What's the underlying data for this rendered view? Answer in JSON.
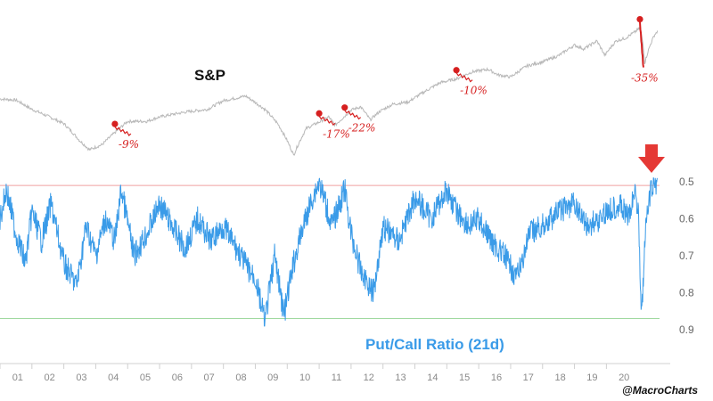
{
  "chart_data": [
    {
      "type": "line",
      "title": "S&P",
      "series": [
        {
          "x": [
            2000.0,
            2000.5,
            2001.0,
            2001.5,
            2002.0,
            2002.5,
            2002.8,
            2003.2,
            2003.6,
            2004.0,
            2004.6,
            2005.0,
            2005.8,
            2006.5,
            2007.0,
            2007.7,
            2008.3,
            2008.7,
            2009.0,
            2009.2,
            2009.6,
            2010.0,
            2010.3,
            2010.5,
            2010.8,
            2011.0,
            2011.3,
            2011.6,
            2011.9,
            2012.3,
            2012.8,
            2013.3,
            2013.8,
            2014.3,
            2014.8,
            2015.3,
            2015.6,
            2016.0,
            2016.5,
            2017.0,
            2017.5,
            2018.0,
            2018.3,
            2018.7,
            2018.95,
            2019.3,
            2019.6,
            2019.9,
            2020.05,
            2020.15,
            2020.2,
            2020.35,
            2020.5,
            2020.6
          ],
          "values": [
            1470,
            1450,
            1300,
            1200,
            1100,
            900,
            810,
            860,
            990,
            1130,
            1130,
            1190,
            1260,
            1300,
            1440,
            1520,
            1300,
            1100,
            900,
            760,
            1040,
            1120,
            1190,
            1080,
            1200,
            1290,
            1340,
            1150,
            1270,
            1380,
            1420,
            1600,
            1780,
            1860,
            2020,
            2080,
            1950,
            1900,
            2160,
            2270,
            2440,
            2760,
            2640,
            2900,
            2450,
            2900,
            3000,
            3230,
            3380,
            2800,
            2240,
            2700,
            3100,
            3250
          ]
        }
      ],
      "annotations": [
        {
          "x": 2003.6,
          "label": "-9%"
        },
        {
          "x": 2010.0,
          "label": "-17%"
        },
        {
          "x": 2010.8,
          "label": "-22%"
        },
        {
          "x": 2014.3,
          "label": "-10%"
        },
        {
          "x": 2020.05,
          "label": "-35%"
        }
      ]
    },
    {
      "type": "line",
      "title": "Put/Call Ratio (21d)",
      "ylim": [
        0.5,
        0.9
      ],
      "yaxis_inverted": true,
      "yticks": [
        "0.5",
        "0.6",
        "0.7",
        "0.8",
        "0.9"
      ],
      "xticks": [
        "01",
        "02",
        "03",
        "04",
        "05",
        "06",
        "07",
        "08",
        "09",
        "10",
        "11",
        "12",
        "13",
        "14",
        "15",
        "16",
        "17",
        "18",
        "19",
        "20"
      ],
      "reference_lines": [
        {
          "value": 0.51,
          "color": "#f0a0a0"
        },
        {
          "value": 0.87,
          "color": "#9ed89e"
        }
      ],
      "series": [
        {
          "x": [
            2000.0,
            2000.2,
            2000.5,
            2000.8,
            2001.0,
            2001.3,
            2001.6,
            2002.0,
            2002.4,
            2002.7,
            2003.0,
            2003.3,
            2003.6,
            2003.8,
            2004.2,
            2004.6,
            2005.0,
            2005.4,
            2005.8,
            2006.2,
            2006.6,
            2007.0,
            2007.4,
            2007.8,
            2008.0,
            2008.3,
            2008.6,
            2008.9,
            2009.2,
            2009.5,
            2009.8,
            2010.0,
            2010.4,
            2010.8,
            2011.0,
            2011.3,
            2011.7,
            2012.0,
            2012.5,
            2013.0,
            2013.5,
            2014.0,
            2014.3,
            2014.7,
            2015.0,
            2015.4,
            2015.8,
            2016.2,
            2016.6,
            2017.0,
            2017.5,
            2018.0,
            2018.4,
            2018.8,
            2019.0,
            2019.4,
            2019.7,
            2019.9,
            2020.0,
            2020.1,
            2020.25,
            2020.4,
            2020.6
          ],
          "values": [
            0.6,
            0.52,
            0.64,
            0.72,
            0.58,
            0.66,
            0.56,
            0.72,
            0.78,
            0.62,
            0.7,
            0.6,
            0.66,
            0.52,
            0.7,
            0.64,
            0.56,
            0.62,
            0.68,
            0.6,
            0.66,
            0.62,
            0.68,
            0.74,
            0.76,
            0.88,
            0.7,
            0.86,
            0.72,
            0.62,
            0.54,
            0.5,
            0.62,
            0.52,
            0.64,
            0.74,
            0.8,
            0.62,
            0.66,
            0.54,
            0.6,
            0.52,
            0.58,
            0.62,
            0.6,
            0.66,
            0.7,
            0.76,
            0.64,
            0.62,
            0.58,
            0.56,
            0.62,
            0.6,
            0.58,
            0.56,
            0.6,
            0.52,
            0.58,
            0.86,
            0.6,
            0.52,
            0.5
          ]
        }
      ]
    }
  ],
  "credit": "@MacroCharts",
  "colors": {
    "sp_line": "#b8b8b8",
    "pc_line": "#3a9be8",
    "drawdown": "#d62020",
    "drawdown_recovery": "#2e9a2e",
    "arrow": "#e53935"
  }
}
